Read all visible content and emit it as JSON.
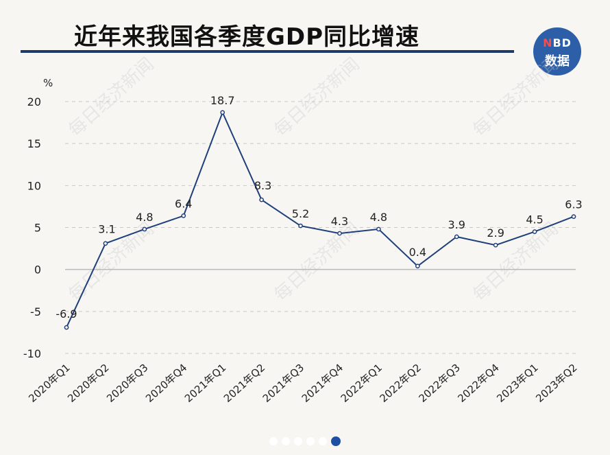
{
  "header": {
    "title": "近年来我国各季度GDP同比增速",
    "logo": {
      "line1_n": "N",
      "line1_rest": "BD",
      "line2": "数据"
    }
  },
  "watermark_text": "每日经济新闻",
  "chart_data": {
    "type": "line",
    "title": "近年来我国各季度GDP同比增速",
    "xlabel": "",
    "ylabel": "%",
    "ylim": [
      -10,
      20
    ],
    "yticks": [
      -10,
      -5,
      0,
      5,
      10,
      15,
      20
    ],
    "grid": true,
    "categories": [
      "2020年Q1",
      "2020年Q2",
      "2020年Q3",
      "2020年Q4",
      "2021年Q1",
      "2021年Q2",
      "2021年Q3",
      "2021年Q4",
      "2022年Q1",
      "2022年Q2",
      "2022年Q3",
      "2022年Q4",
      "2023年Q1",
      "2023年Q2"
    ],
    "values": [
      -6.9,
      3.1,
      4.8,
      6.4,
      18.7,
      8.3,
      5.2,
      4.3,
      4.8,
      0.4,
      3.9,
      2.9,
      4.5,
      6.3
    ],
    "data_labels": [
      "-6.9",
      "3.1",
      "4.8",
      "6.4",
      "18.7",
      "8.3",
      "5.2",
      "4.3",
      "4.8",
      "0.4",
      "3.9",
      "2.9",
      "4.5",
      "6.3"
    ],
    "line_color": "#1f3f7a"
  },
  "pagination": {
    "count": 6,
    "active_index": 5
  }
}
